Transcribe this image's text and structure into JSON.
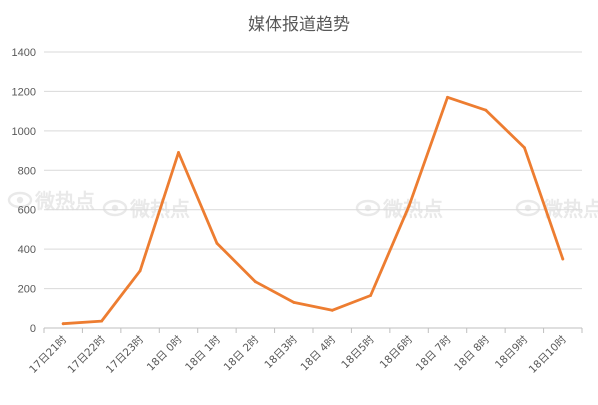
{
  "chart_data": {
    "type": "line",
    "title": "媒体报道趋势",
    "xlabel": "",
    "ylabel": "",
    "ylim": [
      0,
      1400
    ],
    "yticks": [
      0,
      200,
      400,
      600,
      800,
      1000,
      1200,
      1400
    ],
    "grid": true,
    "legend": "none",
    "categories": [
      "17日21时",
      "17日22时",
      "17日23时",
      "18日 0时",
      "18日 1时",
      "18日 2时",
      "18日3时",
      "18日 4时",
      "18日5时",
      "18日6时",
      "18日 7时",
      "18日 8时",
      "18日9时",
      "18日10时"
    ],
    "series": [
      {
        "values": [
          22,
          35,
          290,
          890,
          430,
          235,
          130,
          90,
          165,
          620,
          1170,
          1105,
          915,
          350
        ],
        "color": "#ed7d31"
      }
    ]
  },
  "watermark": {
    "text": "微热点",
    "icon": "eye-icon"
  }
}
